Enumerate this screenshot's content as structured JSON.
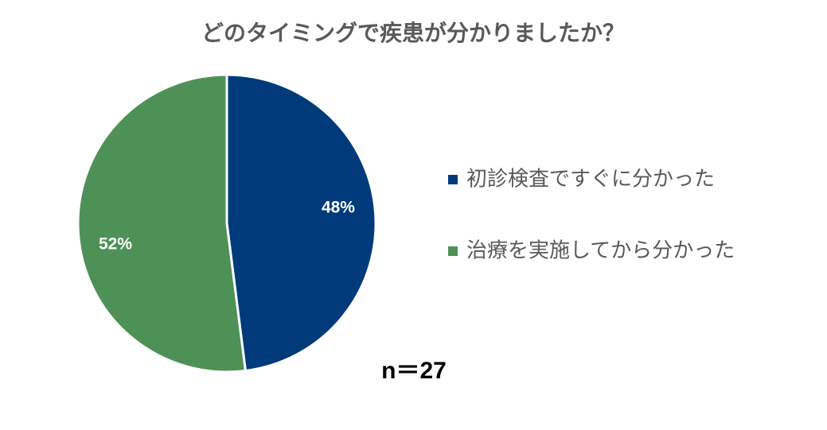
{
  "chart_data": {
    "type": "pie",
    "title": "どのタイミングで疾患が分かりましたか？",
    "categories": [
      "初診検査ですぐに分かった",
      "治療を実施してから分かった"
    ],
    "values": [
      48,
      52
    ],
    "value_labels": [
      "48%",
      "52%"
    ],
    "colors": [
      "#003a7a",
      "#4e9157"
    ],
    "annotation": "n＝27",
    "legend": "right"
  }
}
